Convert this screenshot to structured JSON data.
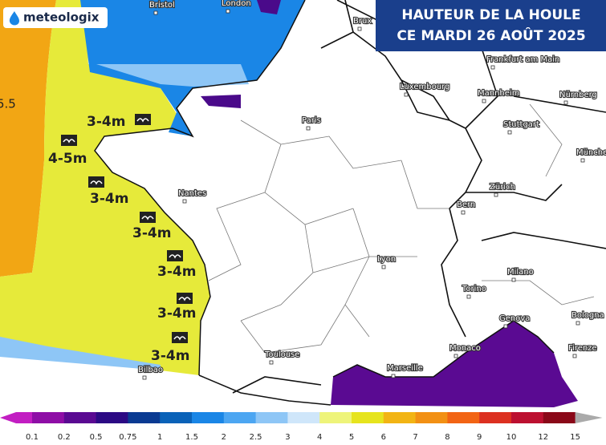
{
  "header": {
    "logo": "meteologix",
    "title_line1": "HAUTEUR DE LA HOULE",
    "title_line2": "CE MARDI 26 AOÛT 2025"
  },
  "map": {
    "edge_label": "5.5",
    "wave_labels": [
      "3-4m",
      "4-5m",
      "3-4m",
      "3-4m",
      "3-4m",
      "3-4m",
      "3-4m"
    ],
    "cities": [
      "Bristol",
      "London",
      "Brux",
      "Frankfurt am Main",
      "Luxembourg",
      "Mannheim",
      "Nürnberg",
      "Paris",
      "Stuttgart",
      "Münche",
      "Nantes",
      "Zürich",
      "Bern",
      "Lyon",
      "Milano",
      "Torino",
      "Genova",
      "Bologna",
      "Monaco",
      "Firenze",
      "Toulouse",
      "Marseille",
      "Bilbao"
    ]
  },
  "legend": {
    "labels": [
      "0.1",
      "0.2",
      "0.5",
      "0.75",
      "1",
      "1.5",
      "2",
      "2.5",
      "3",
      "4",
      "5",
      "6",
      "7",
      "8",
      "9",
      "10",
      "12",
      "15"
    ],
    "colors": [
      "#c21ec2",
      "#8e0ea6",
      "#5a0a92",
      "#2c0a84",
      "#0a3a92",
      "#0a62b8",
      "#1a86e6",
      "#4ca6f2",
      "#8ec6f6",
      "#cfe6fa",
      "#eef47a",
      "#e6e41e",
      "#f2b414",
      "#f29014",
      "#f26414",
      "#dc3020",
      "#bc1030",
      "#8a0818"
    ]
  }
}
